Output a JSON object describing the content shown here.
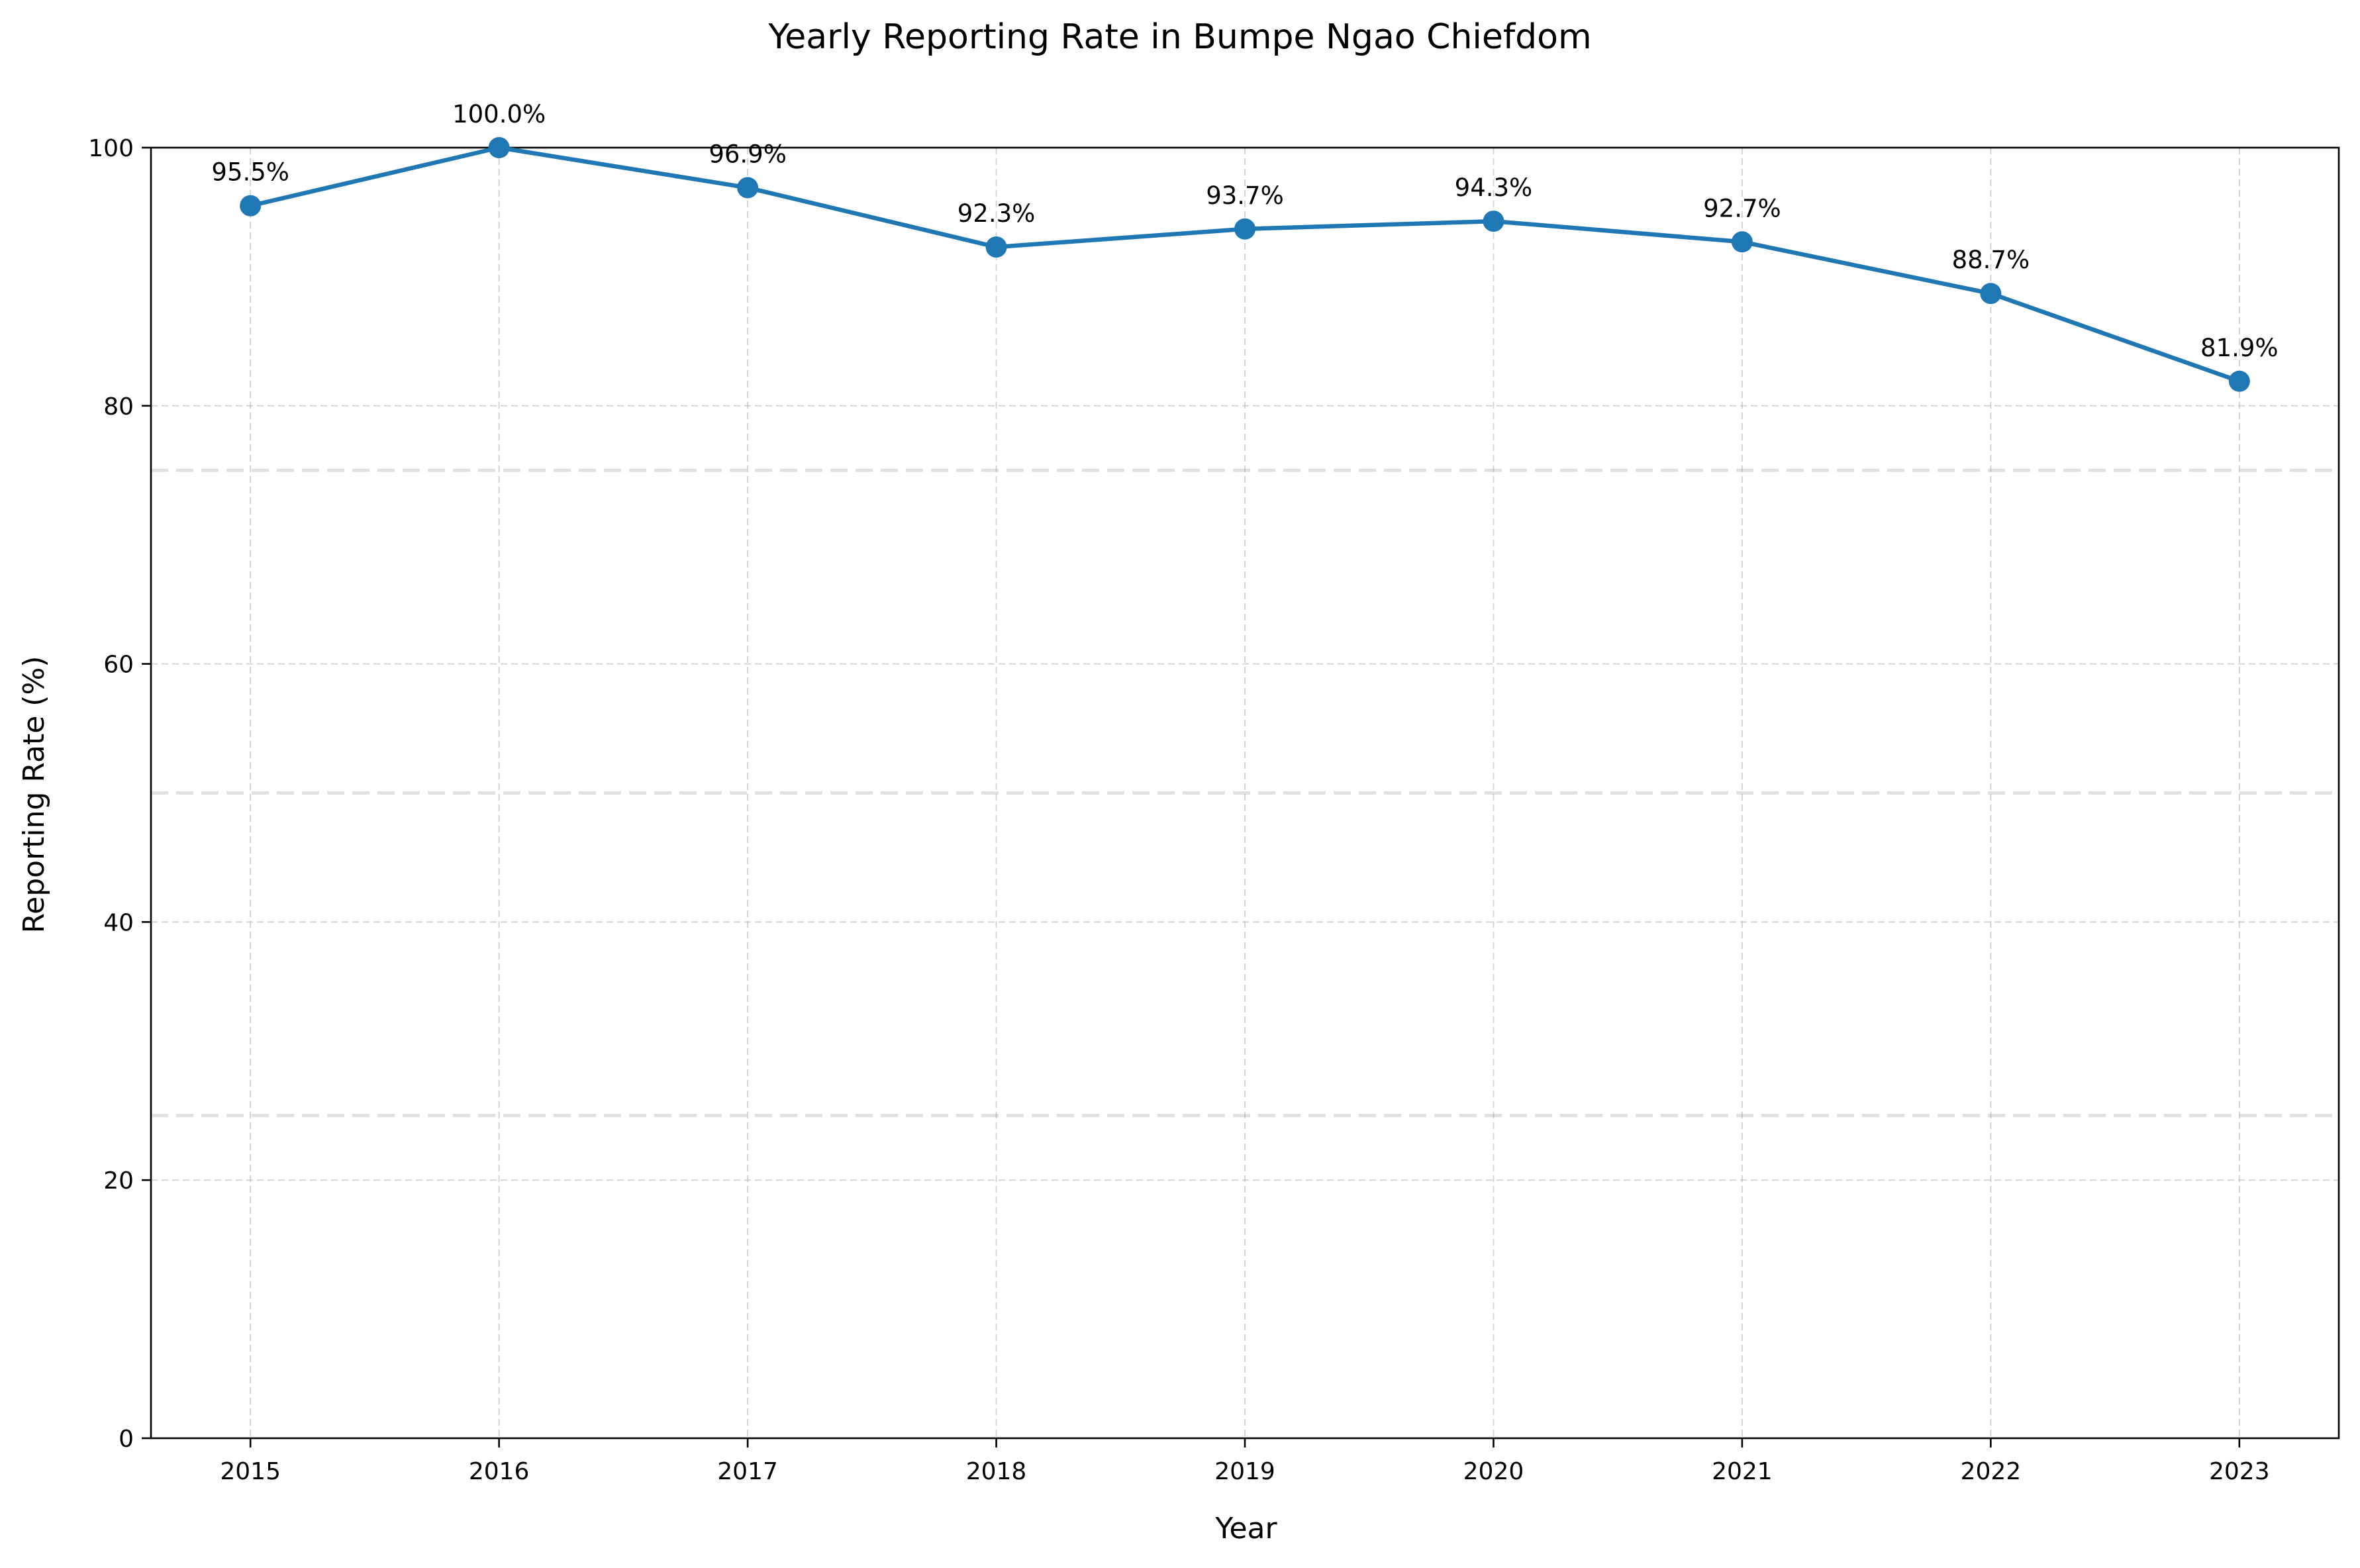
{
  "chart_data": {
    "type": "line",
    "title": "Yearly Reporting Rate in Bumpe Ngao Chiefdom",
    "xlabel": "Year",
    "ylabel": "Reporting Rate (%)",
    "x": [
      2015,
      2016,
      2017,
      2018,
      2019,
      2020,
      2021,
      2022,
      2023
    ],
    "x_tick_labels": [
      "2015",
      "2016",
      "2017",
      "2018",
      "2019",
      "2020",
      "2021",
      "2022",
      "2023"
    ],
    "xlim": [
      2014.6,
      2023.4
    ],
    "ylim": [
      0,
      100
    ],
    "y_ticks": [
      0,
      20,
      40,
      60,
      80,
      100
    ],
    "y_tick_labels": [
      "0",
      "20",
      "40",
      "60",
      "80",
      "100"
    ],
    "series": [
      {
        "values": [
          95.5,
          100.0,
          96.9,
          92.3,
          93.7,
          94.3,
          92.7,
          88.7,
          81.9
        ],
        "data_labels": [
          "95.5%",
          "100.0%",
          "96.9%",
          "92.3%",
          "93.7%",
          "94.3%",
          "92.7%",
          "88.7%",
          "81.9%"
        ],
        "color": "#1f77b4",
        "marker": "circle"
      }
    ],
    "reference_lines": [
      25,
      50,
      75
    ],
    "grid": true,
    "legend": "none"
  }
}
